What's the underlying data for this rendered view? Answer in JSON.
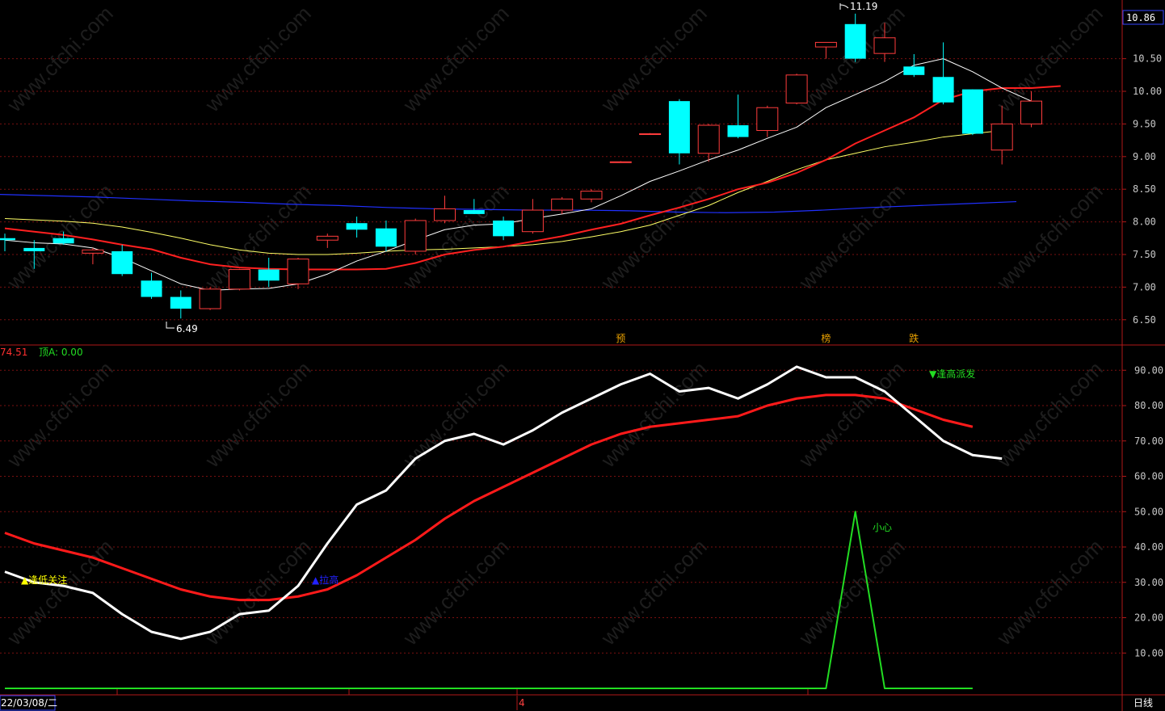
{
  "colors": {
    "background": "#000000",
    "grid": "#7a1010",
    "up_candle": "#ff3c3c",
    "down_candle": "#00ffff",
    "ma_short": "#ffffff",
    "ma_mid": "#ff2020",
    "ma_long": "#ffff66",
    "ma_longest": "#2030ff",
    "osc_main": "#ffffff",
    "osc_signal": "#ff1a1a",
    "osc_green": "#22dd22",
    "label_yellow": "#ffff00",
    "label_blue": "#2222ff",
    "label_green": "#22dd22",
    "badge_orange": "#e8a000"
  },
  "watermark": "www.cfchi.com",
  "header": {
    "price_badge": "10.86"
  },
  "footer": {
    "date_label": "22/03/08/二",
    "month_marker": "4",
    "period_label": "日线"
  },
  "osc_header": {
    "value_text": "74.51",
    "top_label": "顶A: 0.00"
  },
  "chart_data": [
    {
      "type": "candlestick",
      "title": "",
      "y_ticks": [
        "10.50",
        "10.00",
        "9.50",
        "9.00",
        "8.50",
        "8.00",
        "7.50",
        "7.00",
        "6.50"
      ],
      "ylim": [
        6.2,
        11.3
      ],
      "price_high_label": "11.19",
      "price_low_label": "6.49",
      "candles": [
        {
          "o": 7.75,
          "h": 7.82,
          "l": 7.55,
          "c": 7.72,
          "up": false
        },
        {
          "o": 7.6,
          "h": 7.72,
          "l": 7.28,
          "c": 7.55,
          "up": false
        },
        {
          "o": 7.75,
          "h": 7.85,
          "l": 7.65,
          "c": 7.67,
          "up": false
        },
        {
          "o": 7.52,
          "h": 7.6,
          "l": 7.35,
          "c": 7.57,
          "up": true
        },
        {
          "o": 7.55,
          "h": 7.65,
          "l": 7.17,
          "c": 7.2,
          "up": false
        },
        {
          "o": 7.1,
          "h": 7.22,
          "l": 6.82,
          "c": 6.85,
          "up": false
        },
        {
          "o": 6.85,
          "h": 6.95,
          "l": 6.52,
          "c": 6.67,
          "up": false
        },
        {
          "o": 6.67,
          "h": 7.0,
          "l": 6.65,
          "c": 6.97,
          "up": true
        },
        {
          "o": 6.97,
          "h": 7.28,
          "l": 6.95,
          "c": 7.27,
          "up": true
        },
        {
          "o": 7.27,
          "h": 7.45,
          "l": 7.0,
          "c": 7.1,
          "up": false
        },
        {
          "o": 7.05,
          "h": 7.45,
          "l": 6.97,
          "c": 7.43,
          "up": true
        },
        {
          "o": 7.72,
          "h": 7.82,
          "l": 7.6,
          "c": 7.78,
          "up": true
        },
        {
          "o": 7.98,
          "h": 8.08,
          "l": 7.76,
          "c": 7.88,
          "up": false
        },
        {
          "o": 7.9,
          "h": 8.02,
          "l": 7.55,
          "c": 7.62,
          "up": false
        },
        {
          "o": 7.55,
          "h": 8.05,
          "l": 7.5,
          "c": 8.02,
          "up": true
        },
        {
          "o": 8.02,
          "h": 8.4,
          "l": 7.98,
          "c": 8.2,
          "up": true
        },
        {
          "o": 8.18,
          "h": 8.35,
          "l": 8.12,
          "c": 8.12,
          "up": false
        },
        {
          "o": 8.02,
          "h": 8.08,
          "l": 7.72,
          "c": 7.78,
          "up": false
        },
        {
          "o": 7.85,
          "h": 8.35,
          "l": 7.82,
          "c": 8.18,
          "up": true
        },
        {
          "o": 8.18,
          "h": 8.38,
          "l": 8.12,
          "c": 8.35,
          "up": true
        },
        {
          "o": 8.35,
          "h": 8.5,
          "l": 8.3,
          "c": 8.47,
          "up": true
        },
        {
          "o": 8.92,
          "h": 8.93,
          "l": 8.91,
          "c": 8.92,
          "up": true
        },
        {
          "o": 9.35,
          "h": 9.36,
          "l": 9.34,
          "c": 9.35,
          "up": true
        },
        {
          "o": 9.85,
          "h": 9.88,
          "l": 8.88,
          "c": 9.05,
          "up": false
        },
        {
          "o": 9.05,
          "h": 9.5,
          "l": 8.92,
          "c": 9.48,
          "up": true
        },
        {
          "o": 9.48,
          "h": 9.95,
          "l": 9.28,
          "c": 9.3,
          "up": false
        },
        {
          "o": 9.4,
          "h": 9.78,
          "l": 9.3,
          "c": 9.75,
          "up": true
        },
        {
          "o": 9.82,
          "h": 10.27,
          "l": 9.8,
          "c": 10.25,
          "up": true
        },
        {
          "o": 10.68,
          "h": 10.75,
          "l": 10.5,
          "c": 10.75,
          "up": true
        },
        {
          "o": 11.03,
          "h": 11.19,
          "l": 10.45,
          "c": 10.5,
          "up": false
        },
        {
          "o": 10.58,
          "h": 11.05,
          "l": 10.45,
          "c": 10.82,
          "up": true
        },
        {
          "o": 10.38,
          "h": 10.57,
          "l": 10.22,
          "c": 10.25,
          "up": false
        },
        {
          "o": 10.22,
          "h": 10.75,
          "l": 9.8,
          "c": 9.83,
          "up": false
        },
        {
          "o": 10.03,
          "h": 10.03,
          "l": 9.33,
          "c": 9.35,
          "up": false
        },
        {
          "o": 9.1,
          "h": 9.78,
          "l": 8.88,
          "c": 9.5,
          "up": true
        },
        {
          "o": 9.5,
          "h": 10.0,
          "l": 9.45,
          "c": 9.85,
          "up": true
        }
      ],
      "ma_short": [
        7.72,
        7.68,
        7.66,
        7.6,
        7.45,
        7.25,
        7.05,
        6.95,
        6.97,
        6.98,
        7.05,
        7.2,
        7.4,
        7.55,
        7.72,
        7.88,
        7.95,
        7.97,
        8.05,
        8.12,
        8.2,
        8.4,
        8.62,
        8.78,
        8.95,
        9.1,
        9.28,
        9.45,
        9.75,
        9.95,
        10.15,
        10.4,
        10.5,
        10.3,
        10.05,
        9.85
      ],
      "ma_mid": [
        7.9,
        7.85,
        7.8,
        7.73,
        7.65,
        7.58,
        7.45,
        7.35,
        7.3,
        7.28,
        7.27,
        7.27,
        7.27,
        7.28,
        7.37,
        7.5,
        7.57,
        7.62,
        7.7,
        7.78,
        7.88,
        7.97,
        8.1,
        8.22,
        8.35,
        8.5,
        8.6,
        8.75,
        8.95,
        9.2,
        9.4,
        9.6,
        9.87,
        10.0,
        10.05,
        10.05,
        10.08
      ],
      "ma_long": [
        8.05,
        8.03,
        8.01,
        7.98,
        7.92,
        7.84,
        7.75,
        7.65,
        7.57,
        7.52,
        7.5,
        7.5,
        7.52,
        7.55,
        7.57,
        7.58,
        7.6,
        7.62,
        7.65,
        7.7,
        7.77,
        7.85,
        7.95,
        8.1,
        8.25,
        8.45,
        8.62,
        8.8,
        8.95,
        9.05,
        9.15,
        9.22,
        9.3,
        9.35,
        9.4
      ],
      "ma_longest": [
        8.42,
        8.4,
        8.38,
        8.35,
        8.32,
        8.3,
        8.27,
        8.25,
        8.22,
        8.2,
        8.19,
        8.18,
        8.18,
        8.17,
        8.15,
        8.14,
        8.15,
        8.18,
        8.22,
        8.25,
        8.28,
        8.31
      ],
      "signal_badges": [
        {
          "text": "预",
          "candle": 21
        },
        {
          "text": "榜",
          "candle": 28
        },
        {
          "text": "跌",
          "candle": 31
        }
      ]
    },
    {
      "type": "line",
      "title": "",
      "y_ticks": [
        "90.00",
        "80.00",
        "70.00",
        "60.00",
        "50.00",
        "40.00",
        "30.00",
        "20.00",
        "10.00"
      ],
      "ylim": [
        0,
        96
      ],
      "main_line": [
        33,
        30,
        29,
        27,
        21,
        16,
        14,
        16,
        21,
        22,
        29,
        41,
        52,
        56,
        65,
        70,
        72,
        69,
        73,
        78,
        82,
        86,
        89,
        84,
        85,
        82,
        86,
        91,
        88,
        88,
        84,
        77,
        70,
        66,
        65
      ],
      "signal_line": [
        44,
        41,
        39,
        37,
        34,
        31,
        28,
        26,
        25,
        25,
        26,
        28,
        32,
        37,
        42,
        48,
        53,
        57,
        61,
        65,
        69,
        72,
        74,
        75,
        76,
        77,
        80,
        82,
        83,
        83,
        82,
        79,
        76,
        74
      ],
      "green_line": [
        0,
        0,
        0,
        0,
        0,
        0,
        0,
        0,
        0,
        0,
        0,
        0,
        0,
        0,
        0,
        0,
        0,
        0,
        0,
        0,
        0,
        0,
        0,
        0,
        0,
        0,
        0,
        0,
        0,
        50,
        0,
        0,
        0,
        0
      ],
      "annotations": [
        {
          "text": "▲逢低关注",
          "color_key": "label_yellow"
        },
        {
          "text": "▲拉高",
          "color_key": "label_blue"
        },
        {
          "text": "▼逢高派发",
          "color_key": "label_green"
        },
        {
          "text": "小心",
          "color_key": "label_green"
        }
      ]
    }
  ]
}
